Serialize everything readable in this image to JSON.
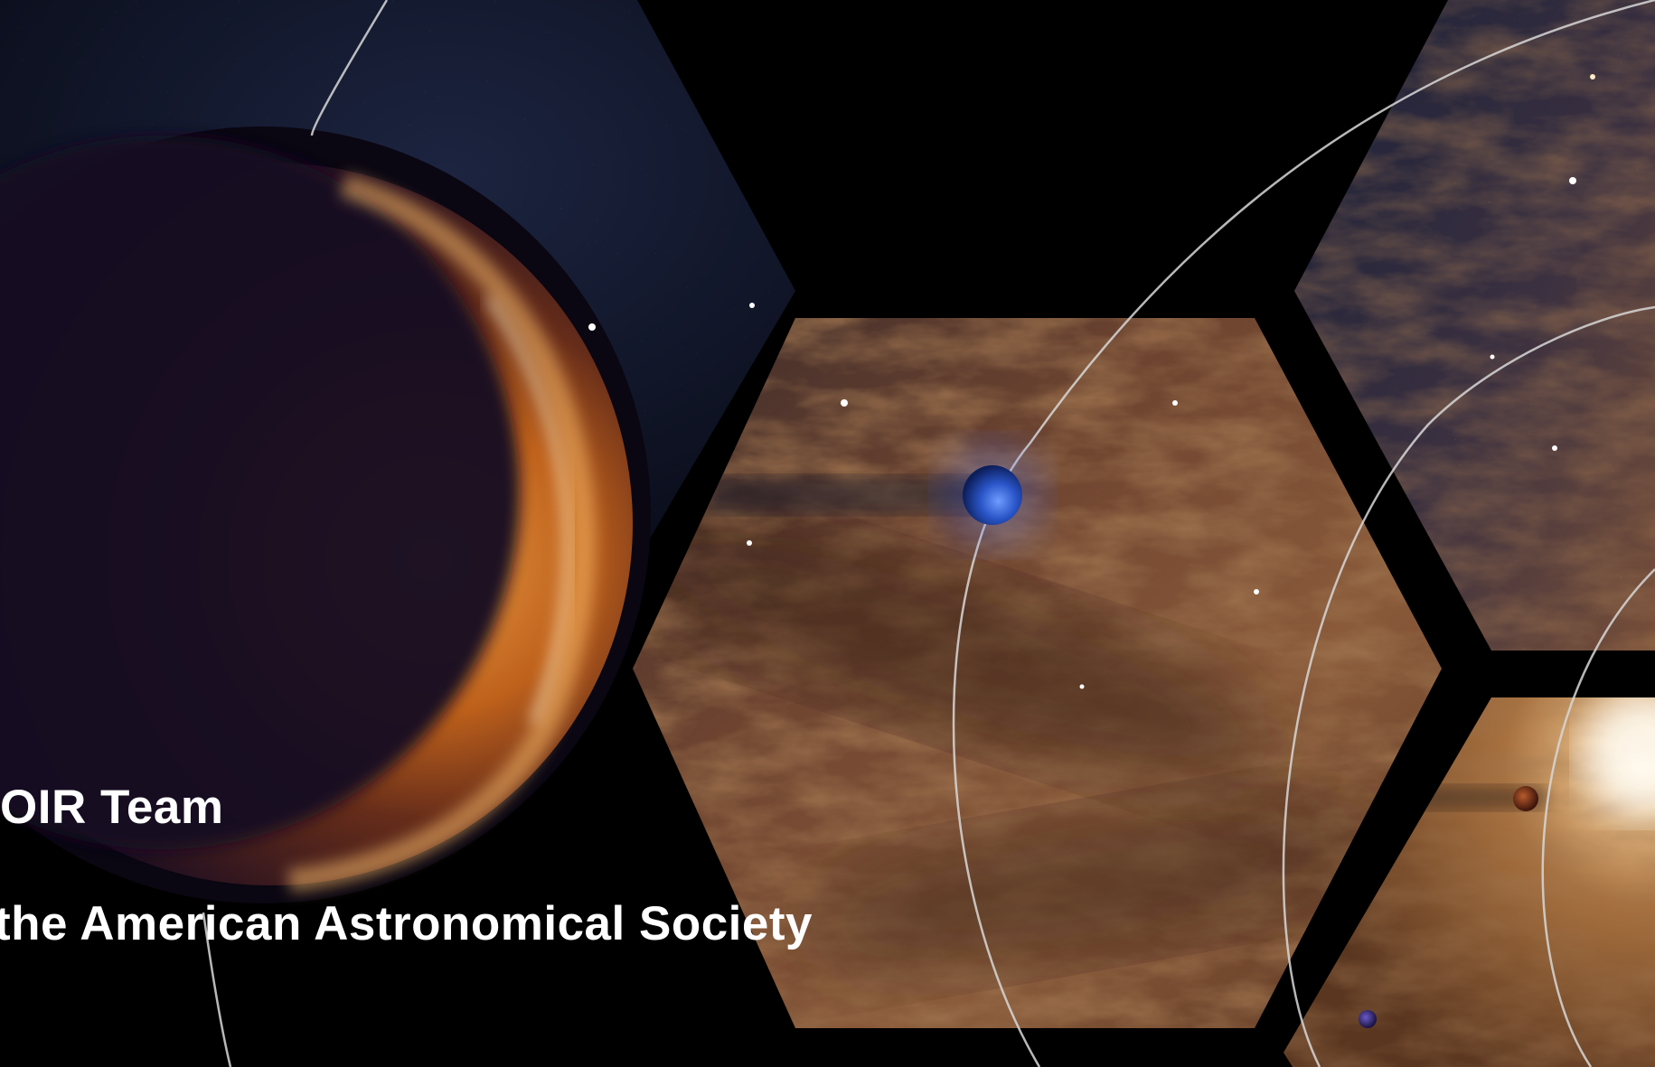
{
  "slide": {
    "line1": "OIR Team",
    "line2": "the American Astronomical Society"
  },
  "palette": {
    "background": "#000000",
    "text": "#ffffff",
    "planet_orange": "#c86a1e",
    "planet_dark": "#180e26",
    "galaxy_brown": "#7a4a2c",
    "space_navy": "#141a30",
    "orbit_line": "#d8d8d8",
    "blue_planet": "#2c56c6"
  }
}
